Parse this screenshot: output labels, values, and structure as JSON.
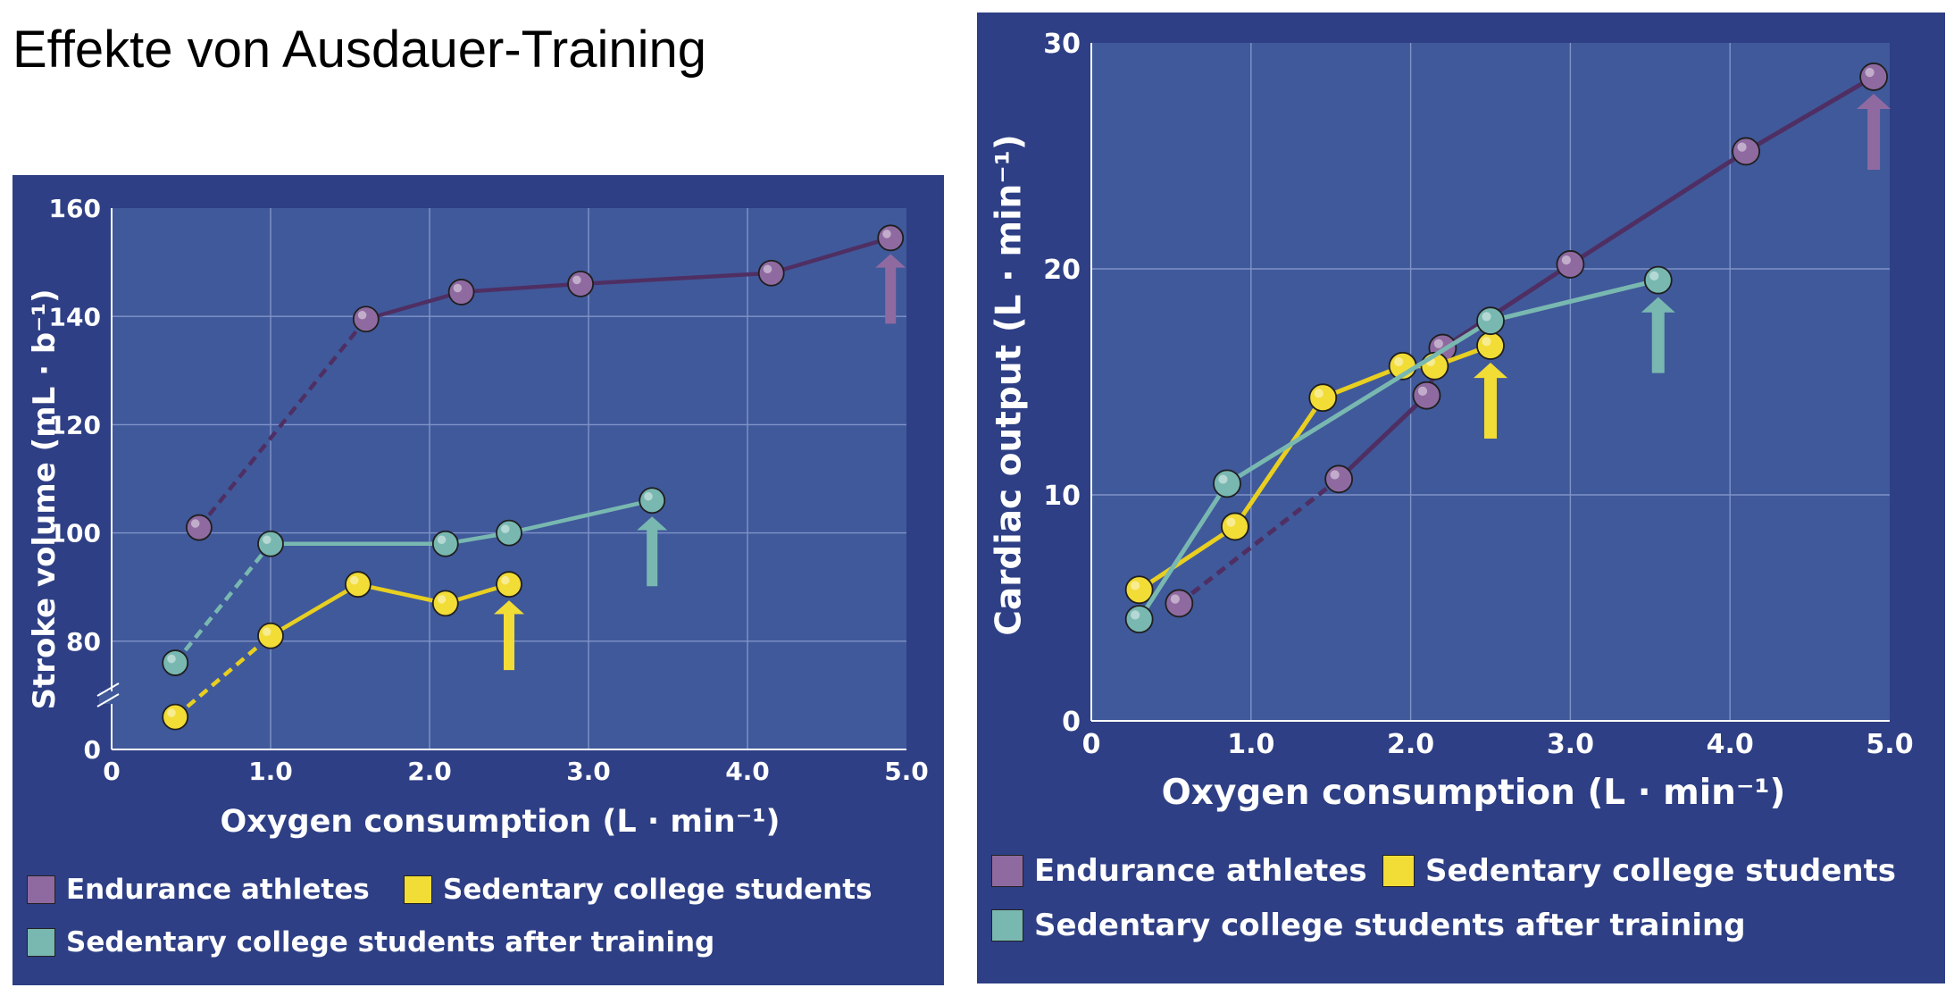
{
  "page": {
    "title": "Effekte von Ausdauer-Training"
  },
  "legend": [
    {
      "label": "Endurance athletes",
      "color": "#8f6aa0"
    },
    {
      "label": "Sedentary college students",
      "color": "#f2dc36"
    },
    {
      "label": "Sedentary college students after training",
      "color": "#79b8b1"
    }
  ],
  "chart_data": [
    {
      "type": "line",
      "title": "",
      "xlabel": "Oxygen consumption (L · min⁻¹)",
      "ylabel": "Stroke volume (mL · b⁻¹)",
      "xlim": [
        0,
        5.0
      ],
      "ylim": [
        60,
        160
      ],
      "axis_break": true,
      "x_ticks": [
        "0",
        "1.0",
        "2.0",
        "3.0",
        "4.0",
        "5.0"
      ],
      "y_ticks": [
        "0",
        "80",
        "100",
        "120",
        "140",
        "160"
      ],
      "grid": true,
      "legend_position": "bottom",
      "series": [
        {
          "name": "Endurance athletes",
          "color": "#8f6aa0",
          "line": "#4f2f63",
          "x": [
            0.55,
            1.6,
            2.2,
            2.95,
            4.15,
            4.9
          ],
          "y": [
            101,
            139.5,
            144.5,
            146,
            148,
            154.5
          ],
          "dashed_first_segment": true,
          "max_at_index": 5
        },
        {
          "name": "Sedentary college students",
          "color": "#f2dc36",
          "line": "#e8cf20",
          "x": [
            0.4,
            1.0,
            1.55,
            2.1,
            2.5
          ],
          "y": [
            66,
            81,
            90.5,
            87,
            90.5
          ],
          "dashed_first_segment": true,
          "max_at_index": 4
        },
        {
          "name": "Sedentary college students after training",
          "color": "#79b8b1",
          "line": "#79b8b1",
          "x": [
            0.4,
            1.0,
            2.1,
            2.5,
            3.4
          ],
          "y": [
            76,
            98,
            98,
            100,
            106
          ],
          "dashed_first_segment": true,
          "max_at_index": 4
        }
      ]
    },
    {
      "type": "line",
      "title": "",
      "xlabel": "Oxygen consumption (L · min⁻¹)",
      "ylabel": "Cardiac output (L · min⁻¹)",
      "xlim": [
        0,
        5.0
      ],
      "ylim": [
        0,
        30
      ],
      "x_ticks": [
        "0",
        "1.0",
        "2.0",
        "3.0",
        "4.0",
        "5.0"
      ],
      "y_ticks": [
        "0",
        "10",
        "20",
        "30"
      ],
      "grid": true,
      "legend_position": "bottom",
      "series": [
        {
          "name": "Endurance athletes",
          "color": "#8f6aa0",
          "line": "#4f2f63",
          "x": [
            0.55,
            1.55,
            2.1,
            2.2,
            3.0,
            4.1,
            4.9
          ],
          "y": [
            5.2,
            10.7,
            14.4,
            16.5,
            20.2,
            25.2,
            28.5
          ],
          "dashed_first_segment": true,
          "max_at_index": 6
        },
        {
          "name": "Sedentary college students",
          "color": "#f2dc36",
          "line": "#e8cf20",
          "x": [
            0.3,
            0.9,
            1.45,
            1.95,
            2.15,
            2.5
          ],
          "y": [
            5.8,
            8.6,
            14.3,
            15.7,
            15.7,
            16.6
          ],
          "dashed_first_segment": false,
          "max_at_index": 5
        },
        {
          "name": "Sedentary college students after training",
          "color": "#79b8b1",
          "line": "#79b8b1",
          "x": [
            0.3,
            0.85,
            2.5,
            3.55
          ],
          "y": [
            4.5,
            10.5,
            17.7,
            19.5
          ],
          "dashed_first_segment": false,
          "max_at_index": 3
        }
      ]
    }
  ]
}
